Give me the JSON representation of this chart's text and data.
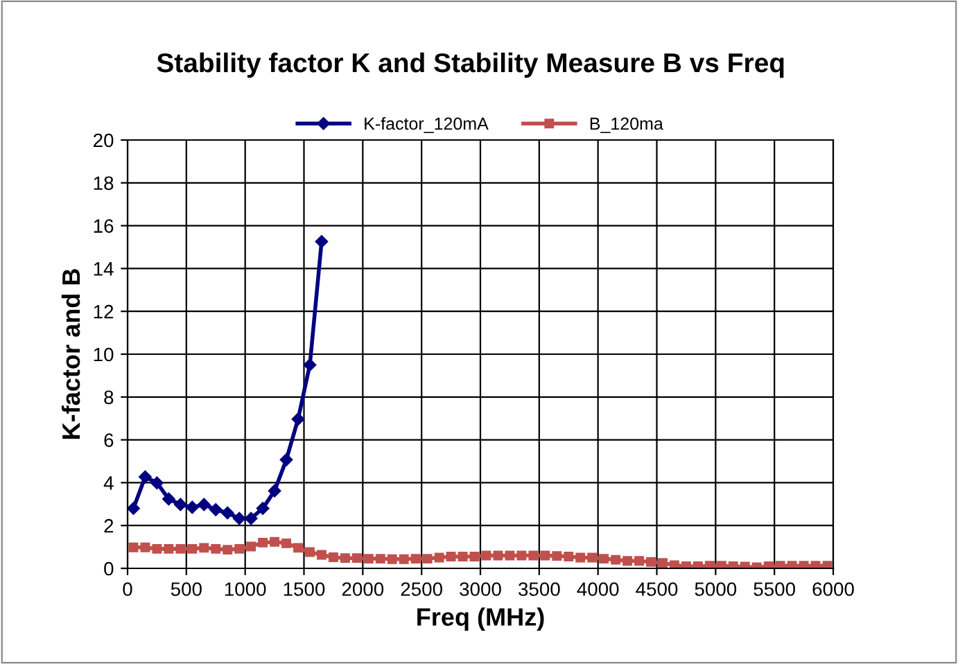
{
  "chart_data": {
    "type": "line",
    "title": "Stability factor K and Stability Measure B vs Freq",
    "xlabel": "Freq (MHz)",
    "ylabel": "K-factor and B",
    "xlim": [
      0,
      6000
    ],
    "xticks": [
      0,
      500,
      1000,
      1500,
      2000,
      2500,
      3000,
      3500,
      4000,
      4500,
      5000,
      5500,
      6000
    ],
    "ylim": [
      0,
      20
    ],
    "yticks": [
      0,
      2,
      4,
      6,
      8,
      10,
      12,
      14,
      16,
      18,
      20
    ],
    "grid": true,
    "legend": "top",
    "series": [
      {
        "name": "K-factor_120mA",
        "color": "#000080",
        "marker": "diamond",
        "x": [
          50,
          150,
          250,
          350,
          450,
          550,
          650,
          750,
          850,
          950,
          1050,
          1150,
          1250,
          1350,
          1450,
          1550,
          1650
        ],
        "values": [
          2.8,
          4.27,
          3.99,
          3.24,
          2.98,
          2.85,
          2.98,
          2.74,
          2.59,
          2.33,
          2.33,
          2.8,
          3.62,
          5.07,
          6.97,
          9.5,
          15.26
        ]
      },
      {
        "name": "B_120ma",
        "color": "#c0504d",
        "marker": "square",
        "x": [
          50,
          150,
          250,
          350,
          450,
          550,
          650,
          750,
          850,
          950,
          1050,
          1150,
          1250,
          1350,
          1450,
          1550,
          1650,
          1750,
          1850,
          1950,
          2050,
          2150,
          2250,
          2350,
          2450,
          2550,
          2650,
          2750,
          2850,
          2950,
          3050,
          3150,
          3250,
          3350,
          3450,
          3550,
          3650,
          3750,
          3850,
          3950,
          4050,
          4150,
          4250,
          4350,
          4450,
          4550,
          4650,
          4750,
          4850,
          4950,
          5050,
          5150,
          5250,
          5350,
          5450,
          5550,
          5650,
          5750,
          5850,
          5950
        ],
        "values": [
          0.98,
          0.98,
          0.91,
          0.91,
          0.91,
          0.91,
          0.96,
          0.91,
          0.87,
          0.91,
          1.02,
          1.2,
          1.24,
          1.17,
          0.96,
          0.76,
          0.63,
          0.52,
          0.48,
          0.48,
          0.45,
          0.45,
          0.43,
          0.43,
          0.45,
          0.45,
          0.5,
          0.55,
          0.55,
          0.55,
          0.6,
          0.6,
          0.6,
          0.6,
          0.6,
          0.6,
          0.58,
          0.55,
          0.5,
          0.5,
          0.45,
          0.4,
          0.35,
          0.35,
          0.3,
          0.25,
          0.15,
          0.1,
          0.1,
          0.12,
          0.12,
          0.1,
          0.08,
          0.05,
          0.1,
          0.12,
          0.12,
          0.12,
          0.12,
          0.12
        ]
      }
    ]
  }
}
